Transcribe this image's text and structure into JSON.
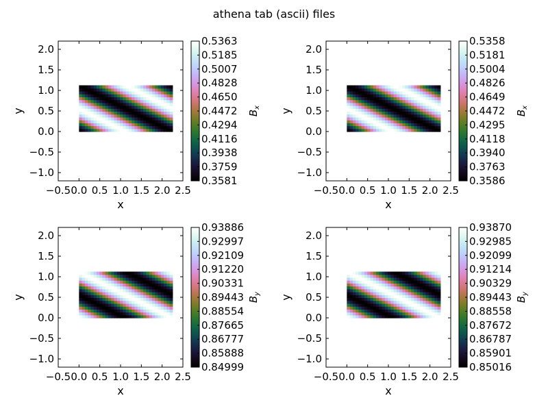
{
  "figure": {
    "title": "athena tab (ascii) files"
  },
  "chart_data": [
    {
      "type": "heatmap",
      "panel": "top-left",
      "title": "",
      "xlabel": "x",
      "ylabel": "y",
      "xlim": [
        -0.5,
        2.5
      ],
      "ylim": [
        -1.2,
        2.2
      ],
      "xticks": [
        "−0.5",
        "0.0",
        "0.5",
        "1.0",
        "1.5",
        "2.0",
        "2.5"
      ],
      "yticks": [
        "−1.0",
        "−0.5",
        "0.0",
        "0.5",
        "1.0",
        "1.5",
        "2.0"
      ],
      "data_extent": {
        "x": [
          0,
          2.25
        ],
        "y": [
          0,
          1.125
        ]
      },
      "colormap": "cubehelix",
      "pattern": {
        "bands": "diagonal",
        "min_at_origin": true
      },
      "colorbar": {
        "label": "B_x",
        "ticks": [
          "0.3581",
          "0.3759",
          "0.3938",
          "0.4116",
          "0.4294",
          "0.4472",
          "0.4650",
          "0.4828",
          "0.5007",
          "0.5185",
          "0.5363"
        ]
      }
    },
    {
      "type": "heatmap",
      "panel": "top-right",
      "title": "",
      "xlabel": "x",
      "ylabel": "y",
      "xlim": [
        -0.5,
        2.5
      ],
      "ylim": [
        -1.2,
        2.2
      ],
      "xticks": [
        "−0.5",
        "0.0",
        "0.5",
        "1.0",
        "1.5",
        "2.0",
        "2.5"
      ],
      "yticks": [
        "−1.0",
        "−0.5",
        "0.0",
        "0.5",
        "1.0",
        "1.5",
        "2.0"
      ],
      "data_extent": {
        "x": [
          0,
          2.25
        ],
        "y": [
          0,
          1.125
        ]
      },
      "colormap": "cubehelix",
      "pattern": {
        "bands": "diagonal",
        "min_at_origin": true
      },
      "colorbar": {
        "label": "B_x",
        "ticks": [
          "0.3586",
          "0.3763",
          "0.3940",
          "0.4118",
          "0.4295",
          "0.4472",
          "0.4649",
          "0.4826",
          "0.5004",
          "0.5181",
          "0.5358"
        ]
      }
    },
    {
      "type": "heatmap",
      "panel": "bottom-left",
      "title": "",
      "xlabel": "x",
      "ylabel": "y",
      "xlim": [
        -0.5,
        2.5
      ],
      "ylim": [
        -1.2,
        2.2
      ],
      "xticks": [
        "−0.5",
        "0.0",
        "0.5",
        "1.0",
        "1.5",
        "2.0",
        "2.5"
      ],
      "yticks": [
        "−1.0",
        "−0.5",
        "0.0",
        "0.5",
        "1.0",
        "1.5",
        "2.0"
      ],
      "data_extent": {
        "x": [
          0,
          2.25
        ],
        "y": [
          0,
          1.125
        ]
      },
      "colormap": "cubehelix",
      "pattern": {
        "bands": "diagonal",
        "min_at_origin": false
      },
      "colorbar": {
        "label": "B_y",
        "ticks": [
          "0.84999",
          "0.85888",
          "0.86777",
          "0.87665",
          "0.88554",
          "0.89443",
          "0.90331",
          "0.91220",
          "0.92109",
          "0.92997",
          "0.93886"
        ]
      }
    },
    {
      "type": "heatmap",
      "panel": "bottom-right",
      "title": "",
      "xlabel": "x",
      "ylabel": "y",
      "xlim": [
        -0.5,
        2.5
      ],
      "ylim": [
        -1.2,
        2.2
      ],
      "xticks": [
        "−0.5",
        "0.0",
        "0.5",
        "1.0",
        "1.5",
        "2.0",
        "2.5"
      ],
      "yticks": [
        "−1.0",
        "−0.5",
        "0.0",
        "0.5",
        "1.0",
        "1.5",
        "2.0"
      ],
      "data_extent": {
        "x": [
          0,
          2.25
        ],
        "y": [
          0,
          1.125
        ]
      },
      "colormap": "cubehelix",
      "pattern": {
        "bands": "diagonal",
        "min_at_origin": false
      },
      "colorbar": {
        "label": "B_y",
        "ticks": [
          "0.85016",
          "0.85901",
          "0.86787",
          "0.87672",
          "0.88558",
          "0.89443",
          "0.90329",
          "0.91214",
          "0.92099",
          "0.92985",
          "0.93870"
        ]
      }
    }
  ]
}
